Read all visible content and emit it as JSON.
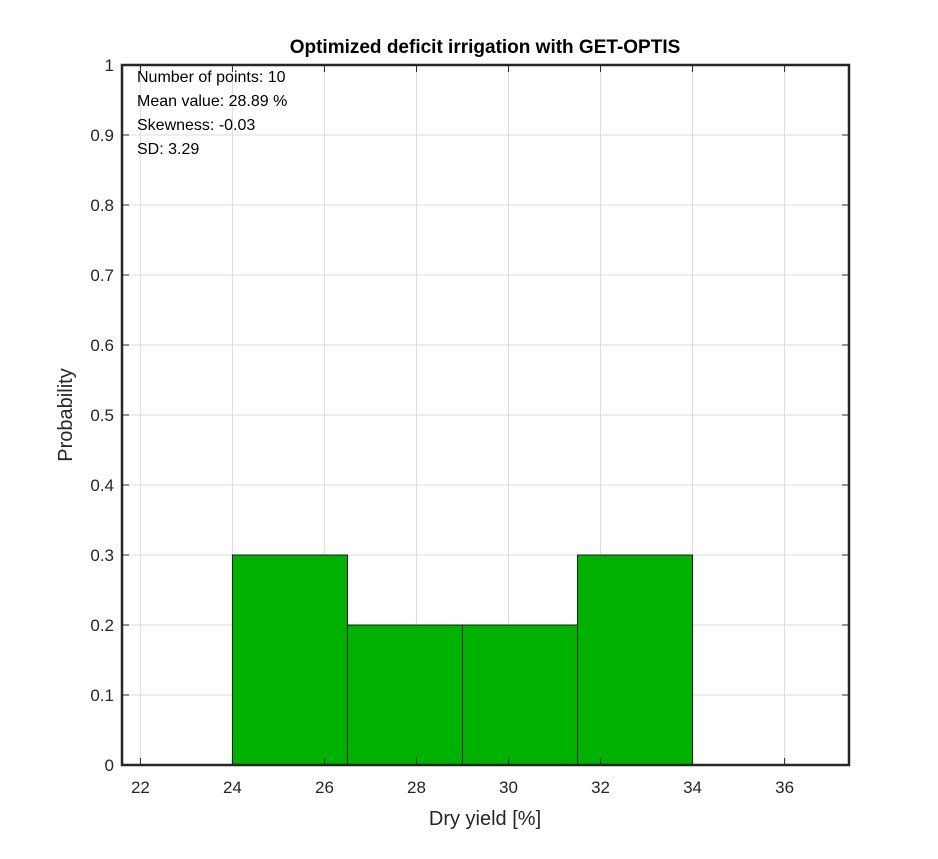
{
  "chart_data": {
    "type": "bar",
    "title": "Optimized deficit irrigation with GET-OPTIS",
    "xlabel": "Dry yield [%]",
    "ylabel": "Probability",
    "bins": [
      {
        "x0": 24,
        "x1": 26.5,
        "value": 0.3
      },
      {
        "x0": 26.5,
        "x1": 29,
        "value": 0.2
      },
      {
        "x0": 29,
        "x1": 31.5,
        "value": 0.2
      },
      {
        "x0": 31.5,
        "x1": 34,
        "value": 0.3
      }
    ],
    "xlim": [
      21.6,
      37.4
    ],
    "ylim": [
      0,
      1
    ],
    "xticks": [
      "22",
      "24",
      "26",
      "28",
      "30",
      "32",
      "34",
      "36"
    ],
    "yticks": [
      "0",
      "0.1",
      "0.2",
      "0.3",
      "0.4",
      "0.5",
      "0.6",
      "0.7",
      "0.8",
      "0.9",
      "1"
    ],
    "grid": true,
    "bar_color": "#00b200",
    "annotations": [
      "Number of points: 10",
      "Mean value: 28.89 %",
      "Skewness: -0.03",
      "SD: 3.29"
    ]
  }
}
